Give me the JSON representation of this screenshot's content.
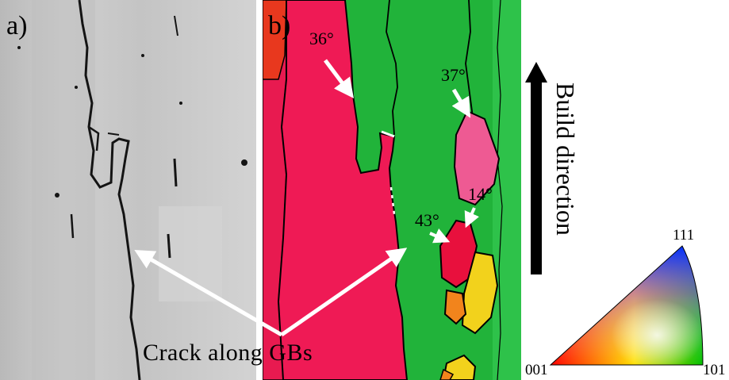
{
  "panels": {
    "a_label": "a)",
    "b_label": "b)"
  },
  "angles": {
    "a1": "36°",
    "a2": "37°",
    "a3": "14°",
    "a4": "43°"
  },
  "annotation": {
    "crack_text": "Crack along GBs"
  },
  "build": {
    "label": "Build direction"
  },
  "ipf": {
    "corner_111": "111",
    "corner_001": "001",
    "corner_101": "101"
  },
  "colors": {
    "sem_bg": "#c8c8c8",
    "grain_red": "#ef1a55",
    "grain_green": "#21b33a",
    "grain_pink": "#ee5a93",
    "grain_orange": "#f2841c",
    "grain_yellow": "#f2d21c",
    "crack_dark": "#141414"
  }
}
